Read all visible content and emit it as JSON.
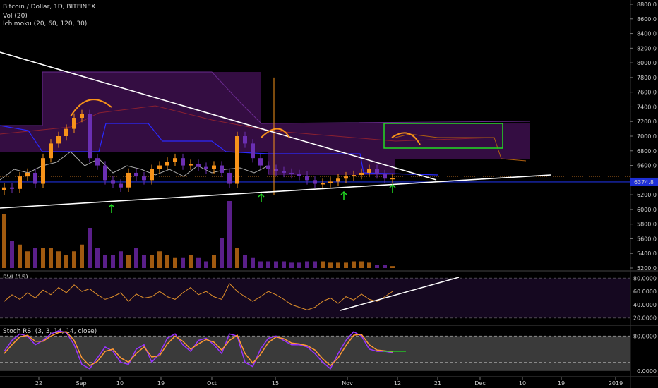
{
  "header": {
    "symbol_line": "Bitcoin / Dollar, 1D, BITFINEX",
    "volume_line": "Vol (20)",
    "ichimoku_line": "Ichimoku (20, 60, 120, 30)"
  },
  "panels": {
    "rvi_label": "RVI (15)",
    "stoch_label": "Stoch RSI (3, 3, 14, 14, close)"
  },
  "price_tag": "6374.8",
  "colors": {
    "bull": "#f7931a",
    "bear": "#6b2fb3",
    "trendline": "#ffffff",
    "box": "#22dd22",
    "marker_arrow": "#22dd22",
    "stoch_k": "#9933ff",
    "stoch_d": "#ff9933",
    "cloud": "#3d0f4d",
    "kijun": "#2a2aff",
    "price_line": "#1e2fd6"
  },
  "chart_data": [
    {
      "type": "line",
      "name": "price",
      "y_ticks": [
        "8800.0",
        "8600.0",
        "8400.0",
        "8200.0",
        "8000.0",
        "7800.0",
        "7600.0",
        "7400.0",
        "7200.0",
        "7000.0",
        "6800.0",
        "6600.0",
        "6400.0",
        "6200.0",
        "6000.0",
        "5800.0",
        "5600.0",
        "5400.0",
        "5200.0"
      ],
      "ylim": [
        5200,
        8800
      ],
      "x_tick_labels": [
        "22",
        "Sep",
        "10",
        "19",
        "Oct",
        "15",
        "Nov",
        "12",
        "21",
        "Dec",
        "10",
        "19",
        "2019"
      ],
      "close_series_sampled": [
        6300,
        6280,
        6450,
        6500,
        6350,
        6700,
        6900,
        7000,
        7100,
        7250,
        7300,
        6700,
        6600,
        6400,
        6350,
        6300,
        6500,
        6450,
        6400,
        6550,
        6600,
        6650,
        6700,
        6600,
        6620,
        6580,
        6550,
        6600,
        6500,
        6350,
        7000,
        6900,
        6700,
        6600,
        6550,
        6520,
        6500,
        6480,
        6460,
        6400,
        6350,
        6360,
        6380,
        6420,
        6450,
        6470,
        6500,
        6550,
        6480,
        6420,
        6430
      ],
      "current_price": 6374.8
    },
    {
      "type": "bar",
      "name": "volume",
      "values_relative": [
        0.8,
        0.4,
        0.35,
        0.25,
        0.3,
        0.3,
        0.3,
        0.25,
        0.2,
        0.25,
        0.35,
        0.6,
        0.3,
        0.2,
        0.2,
        0.25,
        0.2,
        0.3,
        0.2,
        0.2,
        0.25,
        0.2,
        0.15,
        0.15,
        0.2,
        0.15,
        0.1,
        0.2,
        0.45,
        1.0,
        0.3,
        0.2,
        0.15,
        0.1,
        0.1,
        0.1,
        0.1,
        0.08,
        0.08,
        0.1,
        0.1,
        0.1,
        0.08,
        0.08,
        0.08,
        0.1,
        0.1,
        0.08,
        0.05,
        0.05,
        0.03
      ]
    },
    {
      "type": "line",
      "name": "RVI",
      "y_ticks": [
        "80.0000",
        "60.0000",
        "40.0000",
        "20.0000"
      ],
      "ylim": [
        10,
        90
      ],
      "values": [
        45,
        55,
        48,
        58,
        50,
        62,
        55,
        66,
        58,
        70,
        60,
        64,
        55,
        48,
        52,
        58,
        45,
        56,
        50,
        52,
        60,
        52,
        48,
        58,
        66,
        55,
        60,
        52,
        48,
        72,
        60,
        52,
        45,
        52,
        60,
        55,
        48,
        40,
        36,
        32,
        36,
        45,
        50,
        42,
        52,
        47,
        56,
        48,
        45,
        52,
        60
      ]
    },
    {
      "type": "line",
      "name": "Stoch RSI",
      "y_ticks": [
        "80.0000",
        "0.0000"
      ],
      "ylim": [
        -10,
        100
      ],
      "k": [
        45,
        70,
        85,
        80,
        60,
        70,
        85,
        92,
        88,
        60,
        15,
        5,
        30,
        55,
        45,
        20,
        15,
        50,
        60,
        20,
        40,
        75,
        85,
        60,
        45,
        70,
        75,
        60,
        40,
        85,
        80,
        20,
        10,
        50,
        75,
        80,
        70,
        60,
        60,
        55,
        40,
        20,
        5,
        40,
        70,
        90,
        80,
        50,
        45,
        45,
        42
      ],
      "d": [
        40,
        60,
        78,
        82,
        68,
        68,
        80,
        88,
        90,
        70,
        30,
        12,
        22,
        45,
        50,
        30,
        20,
        40,
        55,
        32,
        35,
        62,
        80,
        68,
        50,
        62,
        72,
        66,
        48,
        70,
        82,
        40,
        18,
        38,
        65,
        78,
        74,
        64,
        62,
        58,
        48,
        28,
        12,
        30,
        58,
        82,
        84,
        60,
        48,
        46,
        44
      ]
    }
  ]
}
